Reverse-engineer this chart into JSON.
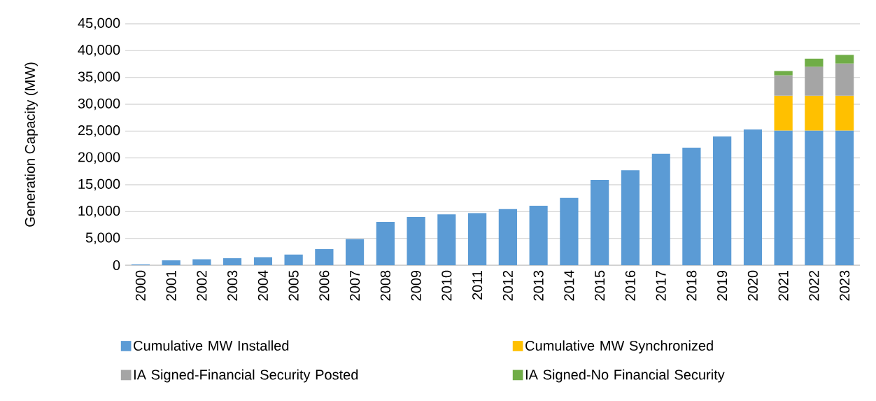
{
  "chart_data": {
    "type": "bar",
    "stacked": true,
    "ylabel": "Generation Capacity (MW)",
    "categories": [
      "2000",
      "2001",
      "2002",
      "2003",
      "2004",
      "2005",
      "2006",
      "2007",
      "2008",
      "2009",
      "2010",
      "2011",
      "2012",
      "2013",
      "2014",
      "2015",
      "2016",
      "2017",
      "2018",
      "2019",
      "2020",
      "2021",
      "2022",
      "2023"
    ],
    "series": [
      {
        "name": "Cumulative MW Installed",
        "color": "#5b9bd5",
        "values": [
          200,
          900,
          1100,
          1300,
          1500,
          2000,
          3000,
          4900,
          8100,
          9000,
          9500,
          9700,
          10500,
          11100,
          12600,
          15900,
          17700,
          20800,
          21900,
          24000,
          25300,
          25100,
          25100,
          25100
        ]
      },
      {
        "name": "Cumulative MW Synchronized",
        "color": "#ffc000",
        "values": [
          null,
          null,
          null,
          null,
          null,
          null,
          null,
          null,
          null,
          null,
          null,
          null,
          null,
          null,
          null,
          null,
          null,
          null,
          null,
          null,
          null,
          6500,
          6500,
          6500
        ]
      },
      {
        "name": "IA Signed-Financial Security Posted",
        "color": "#a5a5a5",
        "values": [
          null,
          null,
          null,
          null,
          null,
          null,
          null,
          null,
          null,
          null,
          null,
          null,
          null,
          null,
          null,
          null,
          null,
          null,
          null,
          null,
          null,
          3800,
          5400,
          6000
        ]
      },
      {
        "name": "IA Signed-No Financial Security",
        "color": "#70ad47",
        "values": [
          null,
          null,
          null,
          null,
          null,
          null,
          null,
          null,
          null,
          null,
          null,
          null,
          null,
          null,
          null,
          null,
          null,
          null,
          null,
          null,
          null,
          800,
          1500,
          1600
        ]
      }
    ],
    "ylim": [
      0,
      45000
    ],
    "yticks": [
      0,
      {
        "value": 5000,
        "label": "5,000"
      },
      {
        "value": 10000,
        "label": "10,000"
      },
      {
        "value": 15000,
        "label": "15,000"
      },
      {
        "value": 20000,
        "label": "20,000"
      },
      {
        "value": 25000,
        "label": "25,000"
      },
      {
        "value": 30000,
        "label": "30,000"
      },
      {
        "value": 35000,
        "label": "35,000"
      },
      {
        "value": 40000,
        "label": "40,000"
      },
      {
        "value": 45000,
        "label": "45,000"
      }
    ],
    "grid": "y",
    "legend": "bottom"
  }
}
